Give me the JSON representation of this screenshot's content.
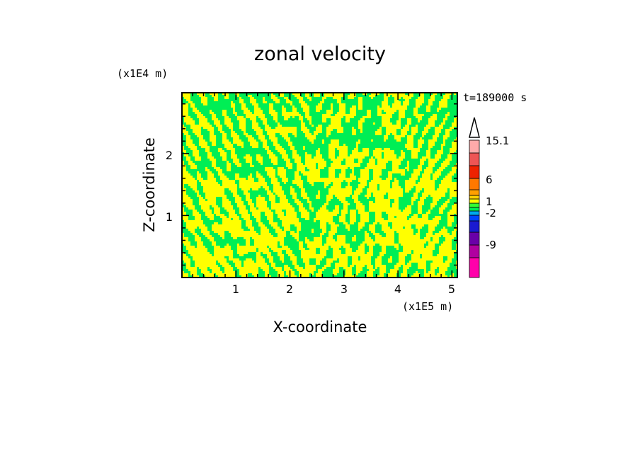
{
  "chart_data": {
    "type": "heatmap",
    "title": "zonal velocity",
    "xlabel": "X-coordinate",
    "ylabel": "Z-coordinate",
    "x_unit": "(x1E5 m)",
    "y_unit": "(x1E4 m)",
    "time_label": "t=189000 s",
    "xlim": [
      0.0,
      5.1
    ],
    "ylim": [
      0.0,
      2.98
    ],
    "x_ticks": [
      "1",
      "2",
      "3",
      "4",
      "5"
    ],
    "y_ticks": [
      "1",
      "2"
    ],
    "colorbar": {
      "labels": [
        "15.1",
        "6",
        "1",
        "-2",
        "-9"
      ],
      "colors": [
        "#ff00aa",
        "#b000a0",
        "#6a00a8",
        "#1a1ad0",
        "#0044ff",
        "#00aaee",
        "#00ee55",
        "#33ff33",
        "#ffff00",
        "#ffd000",
        "#ffa000",
        "#ff7800",
        "#ee2200",
        "#ee5555",
        "#ffaaaa"
      ]
    },
    "field": {
      "dominant_values": [
        "yellow band (~0 to 1)",
        "green band (~-1 to 0)"
      ],
      "pattern": "fine-scale wave field with V-shaped ray patterns centered near x=2.4 and x=4.4"
    }
  }
}
